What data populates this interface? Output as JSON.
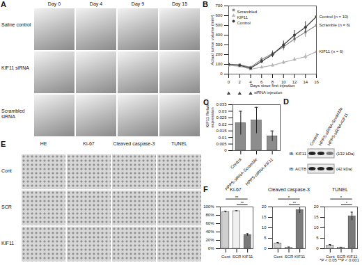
{
  "panels": {
    "A": {
      "letter": "A",
      "columns": [
        "Day 0",
        "Day 4",
        "Day 9",
        "Day 15"
      ],
      "rows": [
        "Saline control",
        "KIF11 siRNA",
        "Scrambled siRNA"
      ]
    },
    "D": {
      "letter": "D",
      "lanes": [
        "Control",
        "HPPS-siRNA-Scramble",
        "HPPS-siRNA-KIF11"
      ],
      "blots": [
        {
          "label": "IB: KIF11",
          "size": "(132 kDa)"
        },
        {
          "label": "IB: ACTB",
          "size": "(42 kDa)"
        }
      ]
    },
    "E": {
      "letter": "E",
      "columns": [
        "HE",
        "Ki-67",
        "Cleaved caspase-3",
        "TUNEL"
      ],
      "rows": [
        "Cont",
        "SCR",
        "KIF11"
      ]
    }
  },
  "footnote": "*P < 0.05 **P < 0.001",
  "chart_data": [
    {
      "panel": "B",
      "type": "line",
      "x_label": "Days since first injection",
      "y_label": "Actual tumor volume (mm³)",
      "x": [
        0,
        2,
        4,
        6,
        8,
        10,
        12,
        14,
        16
      ],
      "xlim": [
        0,
        16
      ],
      "xticks": [
        0,
        2,
        4,
        6,
        8,
        10,
        12,
        14,
        16
      ],
      "ylim": [
        0,
        700
      ],
      "yticks": [
        0,
        100,
        200,
        300,
        400,
        500,
        600,
        700
      ],
      "legend": "top-left",
      "injection_days": [
        0,
        2,
        4
      ],
      "injection_label": "siRNA injection",
      "series": [
        {
          "name": "Scrambled",
          "end_label": "Scramble (n = 6)",
          "color": "#8c8c8c",
          "marker": "square",
          "values": [
            100,
            95,
            70,
            150,
            210,
            280,
            360,
            430,
            500
          ],
          "errors": [
            10,
            10,
            10,
            20,
            30,
            40,
            40,
            50,
            60
          ]
        },
        {
          "name": "KIF11",
          "end_label": "KIF11 (n = 6)",
          "color": "#b4b4b4",
          "marker": "triangle",
          "values": [
            90,
            80,
            50,
            70,
            90,
            120,
            150,
            180,
            230
          ],
          "errors": [
            10,
            10,
            10,
            10,
            15,
            20,
            20,
            30,
            30
          ]
        },
        {
          "name": "Control",
          "end_label": "Control (n = 10)",
          "color": "#3c3c3c",
          "marker": "circle",
          "values": [
            100,
            90,
            60,
            130,
            200,
            300,
            400,
            480,
            590
          ],
          "errors": [
            10,
            10,
            10,
            20,
            30,
            40,
            50,
            60,
            70
          ]
        }
      ]
    },
    {
      "panel": "C",
      "type": "bar",
      "y_label": "KIF11 Relative expression",
      "categories": [
        "Control",
        "HPPS-siRNA-Scramble",
        "HPPS-siRNA-KIF11"
      ],
      "values": [
        0.021,
        0.023,
        0.011
      ],
      "errors": [
        0.009,
        0.01,
        0.004
      ],
      "color": "#8c8c8c",
      "ylim": [
        0,
        0.035
      ],
      "yticks": [
        0,
        0.005,
        0.01,
        0.015,
        0.02,
        0.025,
        0.03,
        0.035
      ]
    },
    {
      "panel": "F",
      "type": "bar",
      "title": "Ki-67",
      "categories": [
        "Cont",
        "SCR",
        "KIF11"
      ],
      "values": [
        88,
        90,
        33
      ],
      "errors": [
        2,
        1,
        3
      ],
      "colors": [
        "#cfcfcf",
        "#f0f0f0",
        "#7a7a7a"
      ],
      "ylim": [
        0,
        100
      ],
      "yticks": [
        {
          "value": 0,
          "label": "0%"
        },
        {
          "value": 20,
          "label": "20%"
        },
        {
          "value": 40,
          "label": "40%"
        },
        {
          "value": 60,
          "label": "60%"
        },
        {
          "value": 80,
          "label": "80%"
        },
        {
          "value": 100,
          "label": "100%"
        }
      ],
      "annotations": [
        {
          "text": "**",
          "between": [
            "SCR",
            "KIF11"
          ]
        },
        {
          "text": "**",
          "between": [
            "Cont",
            "KIF11"
          ]
        }
      ]
    },
    {
      "type": "bar",
      "title": "Cleaved caspase-3",
      "categories": [
        "Cont",
        "SCR",
        "KIF11"
      ],
      "values": [
        2.5,
        0.5,
        18.5
      ],
      "errors": [
        0.5,
        0.3,
        1.5
      ],
      "colors": [
        "#cfcfcf",
        "#f0f0f0",
        "#7a7a7a"
      ],
      "ylim": [
        0,
        20
      ],
      "yticks": [
        0,
        5,
        10,
        15,
        20
      ],
      "annotations": [
        {
          "text": "**",
          "between": [
            "SCR",
            "KIF11"
          ]
        },
        {
          "text": "*",
          "between": [
            "Cont",
            "KIF11"
          ]
        }
      ]
    },
    {
      "type": "bar",
      "title": "TUNEL",
      "categories": [
        "Cont",
        "SCR",
        "KIF11"
      ],
      "values": [
        1.5,
        0.5,
        15.5
      ],
      "errors": [
        0.5,
        0.2,
        2
      ],
      "colors": [
        "#cfcfcf",
        "#f0f0f0",
        "#7a7a7a"
      ],
      "ylim": [
        0,
        20
      ],
      "yticks": [
        0,
        5,
        10,
        15,
        20
      ],
      "annotations": [
        {
          "text": "*",
          "between": [
            "SCR",
            "KIF11"
          ]
        },
        {
          "text": "*",
          "between": [
            "Cont",
            "KIF11"
          ]
        }
      ]
    }
  ]
}
